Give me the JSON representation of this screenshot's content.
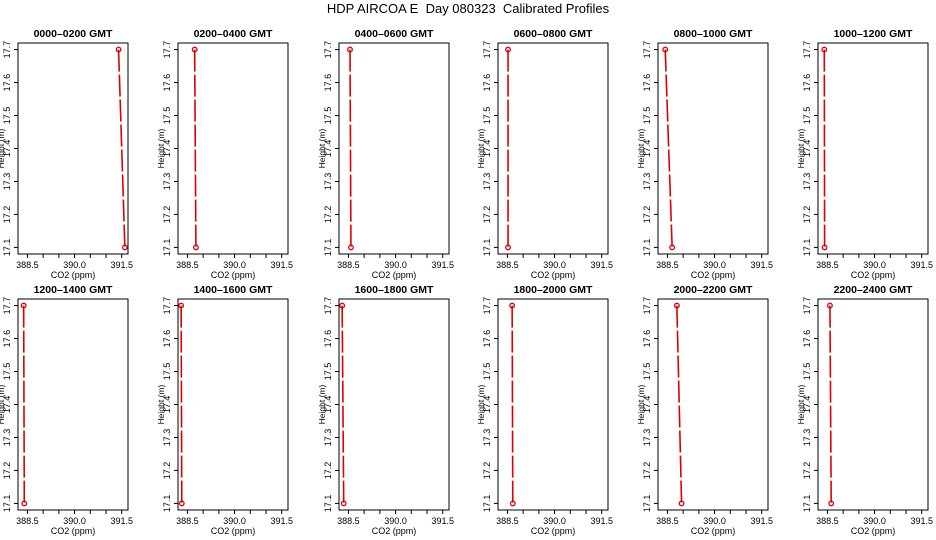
{
  "title": "HDP AIRCOA E  Day 080323  Calibrated Profiles",
  "chart_data": {
    "type": "line",
    "title": "HDP AIRCOA E  Day 080323  Calibrated Profiles",
    "xlabel": "CO2 (ppm)",
    "ylabel": "Height (m)",
    "xlim": [
      388.2,
      391.7
    ],
    "ylim": [
      17.08,
      17.72
    ],
    "x_ticks": [
      388.5,
      389.0,
      389.5,
      390.0,
      390.5,
      391.0,
      391.5
    ],
    "x_tick_labels": [
      "388.5",
      "",
      "390.0",
      "",
      "391.5"
    ],
    "x_tick_label_values": [
      388.5,
      389.25,
      390.0,
      390.75,
      391.5
    ],
    "y_ticks": [
      17.1,
      17.2,
      17.3,
      17.4,
      17.5,
      17.6,
      17.7
    ],
    "y_tick_labels": [
      "17.1",
      "17.2",
      "17.3",
      "17.4",
      "17.5",
      "17.6",
      "17.7"
    ],
    "grid": false,
    "line_color": "#dd0000",
    "panels": [
      {
        "title": "0000–0200 GMT",
        "points": [
          {
            "co2": 391.4,
            "height": 17.7
          },
          {
            "co2": 391.6,
            "height": 17.1
          }
        ]
      },
      {
        "title": "0200–0400 GMT",
        "points": [
          {
            "co2": 388.73,
            "height": 17.7
          },
          {
            "co2": 388.77,
            "height": 17.1
          }
        ]
      },
      {
        "title": "0400–0600 GMT",
        "points": [
          {
            "co2": 388.55,
            "height": 17.7
          },
          {
            "co2": 388.58,
            "height": 17.1
          }
        ]
      },
      {
        "title": "0600–0800 GMT",
        "points": [
          {
            "co2": 388.52,
            "height": 17.7
          },
          {
            "co2": 388.52,
            "height": 17.1
          }
        ]
      },
      {
        "title": "0800–1000 GMT",
        "points": [
          {
            "co2": 388.43,
            "height": 17.7
          },
          {
            "co2": 388.65,
            "height": 17.1
          }
        ]
      },
      {
        "title": "1000–1200 GMT",
        "points": [
          {
            "co2": 388.4,
            "height": 17.7
          },
          {
            "co2": 388.41,
            "height": 17.1
          }
        ]
      },
      {
        "title": "1200–1400 GMT",
        "points": [
          {
            "co2": 388.38,
            "height": 17.7
          },
          {
            "co2": 388.4,
            "height": 17.1
          }
        ]
      },
      {
        "title": "1400–1600 GMT",
        "points": [
          {
            "co2": 388.3,
            "height": 17.7
          },
          {
            "co2": 388.32,
            "height": 17.1
          }
        ]
      },
      {
        "title": "1600–1800 GMT",
        "points": [
          {
            "co2": 388.3,
            "height": 17.7
          },
          {
            "co2": 388.35,
            "height": 17.1
          }
        ]
      },
      {
        "title": "1800–2000 GMT",
        "points": [
          {
            "co2": 388.65,
            "height": 17.7
          },
          {
            "co2": 388.67,
            "height": 17.1
          }
        ]
      },
      {
        "title": "2000–2200 GMT",
        "points": [
          {
            "co2": 388.8,
            "height": 17.7
          },
          {
            "co2": 388.95,
            "height": 17.1
          }
        ]
      },
      {
        "title": "2200–2400 GMT",
        "points": [
          {
            "co2": 388.58,
            "height": 17.7
          },
          {
            "co2": 388.62,
            "height": 17.1
          }
        ]
      }
    ]
  }
}
